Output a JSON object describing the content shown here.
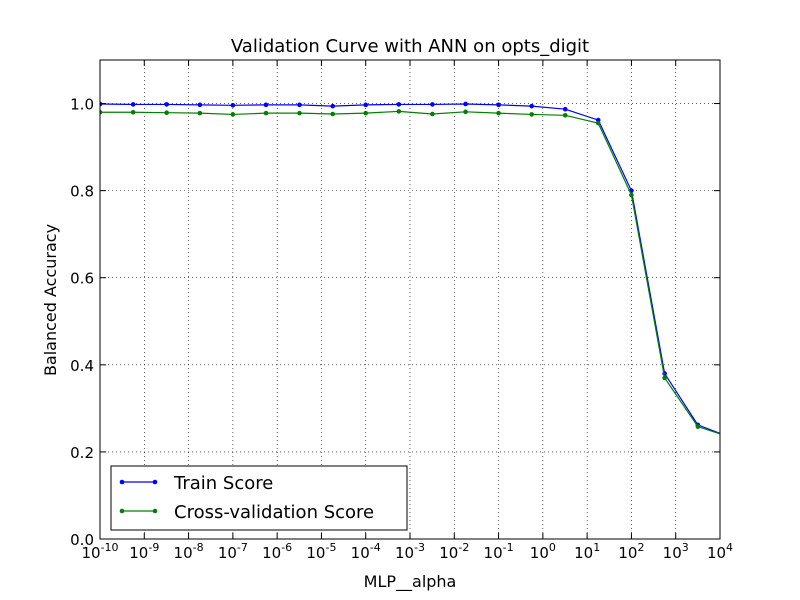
{
  "chart_data": {
    "type": "line",
    "title": "Validation Curve with ANN on opts_digit",
    "xlabel": "MLP__alpha",
    "ylabel": "Balanced Accuracy",
    "x_scale": "log",
    "xlim": [
      1e-10,
      10000
    ],
    "ylim": [
      0.0,
      1.1
    ],
    "x_ticks": [
      {
        "base": "10",
        "exp": "-10",
        "value": 1e-10
      },
      {
        "base": "10",
        "exp": "-9",
        "value": 1e-09
      },
      {
        "base": "10",
        "exp": "-8",
        "value": 1e-08
      },
      {
        "base": "10",
        "exp": "-7",
        "value": 1e-07
      },
      {
        "base": "10",
        "exp": "-6",
        "value": 1e-06
      },
      {
        "base": "10",
        "exp": "-5",
        "value": 1e-05
      },
      {
        "base": "10",
        "exp": "-4",
        "value": 0.0001
      },
      {
        "base": "10",
        "exp": "-3",
        "value": 0.001
      },
      {
        "base": "10",
        "exp": "-2",
        "value": 0.01
      },
      {
        "base": "10",
        "exp": "-1",
        "value": 0.1
      },
      {
        "base": "10",
        "exp": "0",
        "value": 1
      },
      {
        "base": "10",
        "exp": "1",
        "value": 10
      },
      {
        "base": "10",
        "exp": "2",
        "value": 100
      },
      {
        "base": "10",
        "exp": "3",
        "value": 1000
      },
      {
        "base": "10",
        "exp": "4",
        "value": 10000
      }
    ],
    "y_ticks": [
      {
        "label": "0.0",
        "value": 0.0
      },
      {
        "label": "0.2",
        "value": 0.2
      },
      {
        "label": "0.4",
        "value": 0.4
      },
      {
        "label": "0.6",
        "value": 0.6
      },
      {
        "label": "0.8",
        "value": 0.8
      },
      {
        "label": "1.0",
        "value": 1.0
      }
    ],
    "grid": true,
    "legend_position": "lower-left",
    "x": [
      1e-10,
      5.6e-10,
      3.2e-09,
      1.8e-08,
      1e-07,
      5.6e-07,
      3.2e-06,
      1.8e-05,
      0.0001,
      0.00056,
      0.0032,
      0.018,
      0.1,
      0.56,
      3.2,
      17.8,
      100,
      562,
      3162,
      17783,
      100000
    ],
    "series": [
      {
        "name": "Train Score",
        "color": "#0000ff",
        "values": [
          0.999,
          0.998,
          0.998,
          0.997,
          0.996,
          0.997,
          0.997,
          0.994,
          0.997,
          0.998,
          0.998,
          0.999,
          0.997,
          0.994,
          0.987,
          0.962,
          0.8,
          0.38,
          0.262,
          0.233,
          0.233
        ]
      },
      {
        "name": "Cross-validation Score",
        "color": "#008000",
        "values": [
          0.98,
          0.98,
          0.979,
          0.978,
          0.975,
          0.978,
          0.978,
          0.976,
          0.978,
          0.982,
          0.976,
          0.981,
          0.978,
          0.975,
          0.973,
          0.955,
          0.79,
          0.37,
          0.258,
          0.233,
          0.233
        ]
      }
    ]
  }
}
